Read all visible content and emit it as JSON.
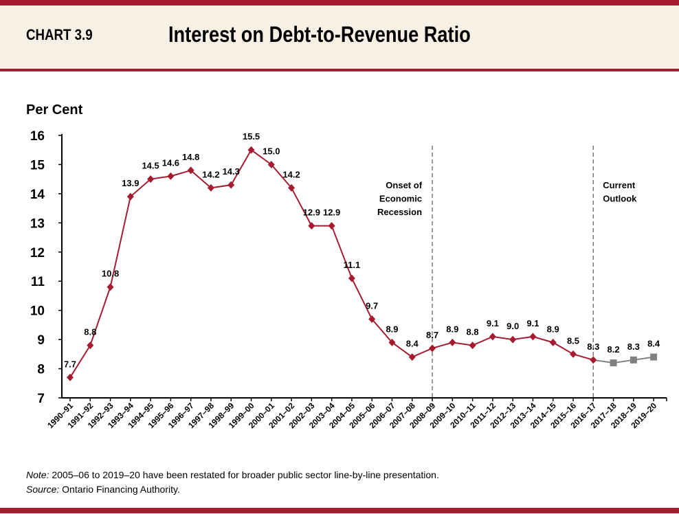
{
  "header": {
    "chart_number": "CHART 3.9",
    "title": "Interest on Debt-to-Revenue Ratio"
  },
  "colors": {
    "accent": "#a51c30",
    "actual_series": "#a51c30",
    "outlook_series": "#808080",
    "band": "#f7f0e4"
  },
  "chart_data": {
    "type": "line",
    "title": "Interest on Debt-to-Revenue Ratio",
    "ylabel": "Per Cent",
    "ylim": [
      7,
      16
    ],
    "yticks": [
      7,
      8,
      9,
      10,
      11,
      12,
      13,
      14,
      15,
      16
    ],
    "categories": [
      "1990–91",
      "1991–92",
      "1992–93",
      "1993–94",
      "1994–95",
      "1995–96",
      "1996–97",
      "1997–98",
      "1998–99",
      "1999–00",
      "2000–01",
      "2001–02",
      "2002–03",
      "2003–04",
      "2004–05",
      "2005–06",
      "2006–07",
      "2007–08",
      "2008–09",
      "2009–10",
      "2010–11",
      "2011–12",
      "2012–13",
      "2013–14",
      "2014–15",
      "2015–16",
      "2016–17",
      "2017–18",
      "2018–19",
      "2019–20"
    ],
    "values": [
      7.7,
      8.8,
      10.8,
      13.9,
      14.5,
      14.6,
      14.8,
      14.2,
      14.3,
      15.5,
      15.0,
      14.2,
      12.9,
      12.9,
      11.1,
      9.7,
      8.9,
      8.4,
      8.7,
      8.9,
      8.8,
      9.1,
      9.0,
      9.1,
      8.9,
      8.5,
      8.3,
      8.2,
      8.3,
      8.4
    ],
    "labels": [
      "7.7",
      "8.8",
      "10.8",
      "13.9",
      "14.5",
      "14.6",
      "14.8",
      "14.2",
      "14.3",
      "15.5",
      "15.0",
      "14.2",
      "12.9",
      "12.9",
      "11.1",
      "9.7",
      "8.9",
      "8.4",
      "8.7",
      "8.9",
      "8.8",
      "9.1",
      "9.0",
      "9.1",
      "8.9",
      "8.5",
      "8.3",
      "8.2",
      "8.3",
      "8.4"
    ],
    "actual_through": "2016–17",
    "annotations": [
      {
        "at": "2008–09",
        "lines": [
          "Onset of",
          "Economic",
          "Recession"
        ]
      },
      {
        "at": "2016–17",
        "lines": [
          "Current",
          "Outlook"
        ]
      }
    ],
    "grid": false
  },
  "footer": {
    "note_label": "Note:",
    "note_text": " 2005–06 to 2019–20 have been restated for broader public sector line-by-line presentation.",
    "source_label": "Source:",
    "source_text": " Ontario Financing Authority."
  }
}
